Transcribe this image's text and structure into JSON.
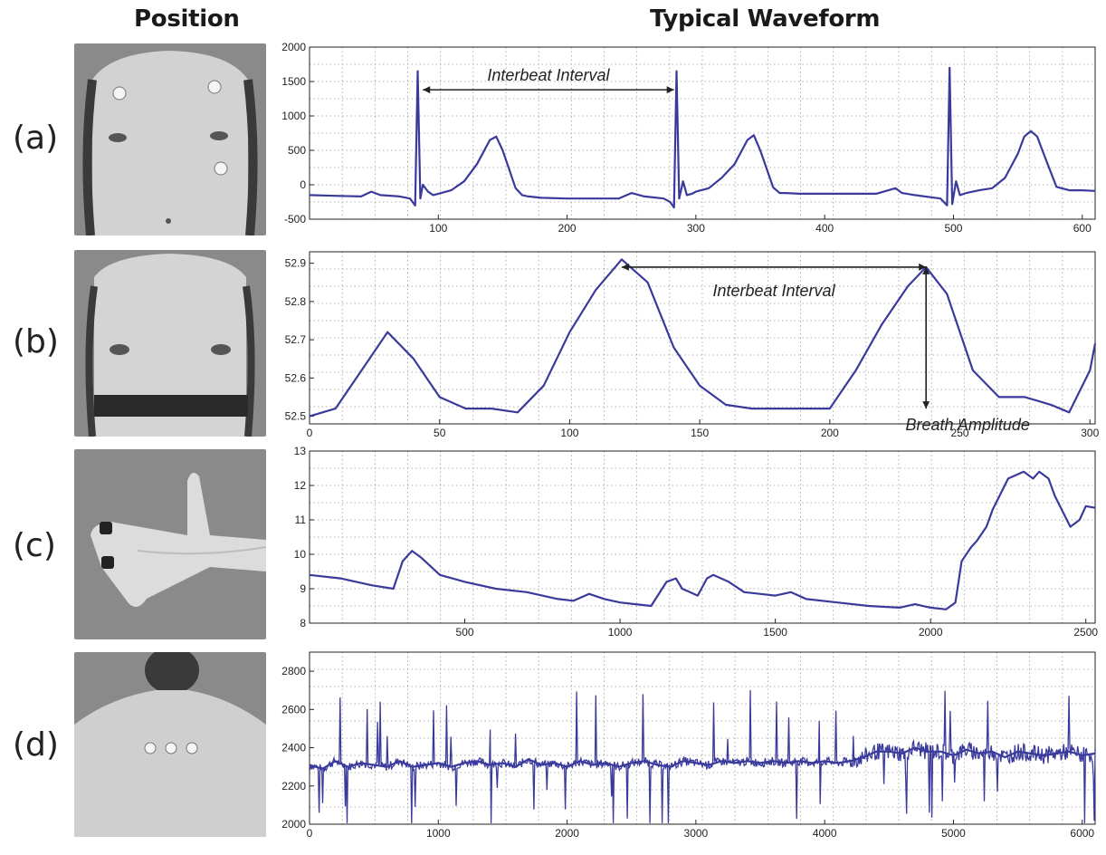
{
  "headers": {
    "position": "Position",
    "waveform": "Typical Waveform"
  },
  "rows": [
    {
      "label": "(a)",
      "photo_icon": "chest-electrodes-photo"
    },
    {
      "label": "(b)",
      "photo_icon": "chest-respiration-belt-photo"
    },
    {
      "label": "(c)",
      "photo_icon": "hand-finger-electrodes-photo"
    },
    {
      "label": "(d)",
      "photo_icon": "upper-back-electrodes-photo"
    }
  ],
  "colors": {
    "line": "#3a3a9c",
    "grid": "#9a9a9a",
    "photo_bg": "#8a8a8a",
    "skin": "#cfcfcf"
  },
  "chart_data": [
    {
      "type": "line",
      "xlim": [
        0,
        610
      ],
      "ylim": [
        -500,
        2000
      ],
      "xticks": [
        100,
        200,
        300,
        400,
        500,
        600
      ],
      "yticks": [
        -500,
        0,
        500,
        1000,
        1500,
        2000
      ],
      "grid": true,
      "annotations": [
        {
          "text": "Interbeat Interval",
          "from": [
            88,
            1380
          ],
          "to": [
            283,
            1380
          ]
        }
      ],
      "series": [
        {
          "x": [
            0,
            20,
            40,
            48,
            55,
            70,
            78,
            82,
            84,
            86,
            88,
            92,
            96,
            100,
            110,
            120,
            130,
            140,
            145,
            150,
            160,
            165,
            170,
            180,
            200,
            220,
            240,
            250,
            260,
            275,
            280,
            283,
            285,
            287,
            290,
            293,
            297,
            300,
            310,
            320,
            330,
            340,
            345,
            350,
            360,
            365,
            370,
            380,
            400,
            420,
            440,
            455,
            460,
            470,
            490,
            495,
            497,
            499,
            502,
            505,
            510,
            515,
            520,
            530,
            540,
            550,
            555,
            560,
            565,
            570,
            580,
            590,
            600,
            610
          ],
          "y": [
            -150,
            -160,
            -170,
            -100,
            -150,
            -170,
            -200,
            -300,
            1650,
            -200,
            0,
            -100,
            -150,
            -130,
            -80,
            50,
            300,
            650,
            700,
            500,
            -50,
            -150,
            -170,
            -190,
            -200,
            -200,
            -200,
            -120,
            -170,
            -200,
            -250,
            -330,
            1650,
            -200,
            50,
            -150,
            -130,
            -100,
            -50,
            100,
            300,
            650,
            720,
            500,
            -40,
            -120,
            -120,
            -130,
            -130,
            -130,
            -130,
            -50,
            -120,
            -150,
            -200,
            -300,
            1700,
            -280,
            50,
            -150,
            -120,
            -100,
            -80,
            -50,
            100,
            450,
            700,
            780,
            700,
            450,
            -30,
            -80,
            -80,
            -90
          ]
        }
      ]
    },
    {
      "type": "line",
      "xlim": [
        0,
        302
      ],
      "ylim": [
        52.48,
        52.93
      ],
      "xticks": [
        0,
        50,
        100,
        150,
        200,
        250,
        300
      ],
      "yticks": [
        52.5,
        52.6,
        52.7,
        52.8,
        52.9
      ],
      "grid": true,
      "annotations": [
        {
          "text": "Interbeat Interval",
          "from": [
            120,
            52.89
          ],
          "to": [
            237,
            52.89
          ]
        },
        {
          "text": "Breath Amplitude",
          "from": [
            237,
            52.89
          ],
          "to": [
            237,
            52.52
          ]
        }
      ],
      "series": [
        {
          "x": [
            0,
            10,
            20,
            30,
            40,
            50,
            60,
            70,
            80,
            90,
            100,
            110,
            120,
            130,
            140,
            150,
            160,
            170,
            180,
            190,
            200,
            210,
            220,
            230,
            237,
            245,
            255,
            265,
            275,
            285,
            292,
            300,
            302
          ],
          "y": [
            52.5,
            52.52,
            52.62,
            52.72,
            52.65,
            52.55,
            52.52,
            52.52,
            52.51,
            52.58,
            52.72,
            52.83,
            52.91,
            52.85,
            52.68,
            52.58,
            52.53,
            52.52,
            52.52,
            52.52,
            52.52,
            52.62,
            52.74,
            52.84,
            52.89,
            52.82,
            52.62,
            52.55,
            52.55,
            52.53,
            52.51,
            52.62,
            52.69
          ]
        }
      ]
    },
    {
      "type": "line",
      "xlim": [
        0,
        2530
      ],
      "ylim": [
        8,
        13
      ],
      "xticks": [
        500,
        1000,
        1500,
        2000,
        2500
      ],
      "yticks": [
        8,
        9,
        10,
        11,
        12,
        13
      ],
      "grid": true,
      "series": [
        {
          "x": [
            0,
            100,
            200,
            270,
            300,
            330,
            360,
            420,
            500,
            600,
            700,
            800,
            850,
            900,
            950,
            1000,
            1050,
            1100,
            1150,
            1180,
            1200,
            1250,
            1280,
            1300,
            1350,
            1400,
            1450,
            1500,
            1550,
            1600,
            1700,
            1800,
            1900,
            1950,
            2000,
            2050,
            2080,
            2100,
            2130,
            2150,
            2180,
            2200,
            2250,
            2300,
            2330,
            2350,
            2380,
            2400,
            2450,
            2480,
            2500,
            2530
          ],
          "y": [
            9.4,
            9.3,
            9.1,
            9.0,
            9.8,
            10.1,
            9.9,
            9.4,
            9.2,
            9.0,
            8.9,
            8.7,
            8.65,
            8.85,
            8.7,
            8.6,
            8.55,
            8.5,
            9.2,
            9.3,
            9.0,
            8.8,
            9.3,
            9.4,
            9.2,
            8.9,
            8.85,
            8.8,
            8.9,
            8.7,
            8.6,
            8.5,
            8.45,
            8.55,
            8.45,
            8.4,
            8.6,
            9.8,
            10.2,
            10.4,
            10.8,
            11.3,
            12.2,
            12.4,
            12.2,
            12.4,
            12.2,
            11.7,
            10.8,
            11.0,
            11.4,
            11.35
          ]
        }
      ]
    },
    {
      "type": "line",
      "xlim": [
        0,
        6100
      ],
      "ylim": [
        2000,
        2900
      ],
      "xticks": [
        0,
        1000,
        2000,
        3000,
        4000,
        5000,
        6000
      ],
      "yticks": [
        2000,
        2200,
        2400,
        2600,
        2800
      ],
      "grid": true,
      "series": [
        {
          "x": [
            0,
            100,
            200,
            300,
            400,
            500,
            600,
            700,
            800,
            900,
            1000,
            1100,
            1200,
            1300,
            1400,
            1500,
            1600,
            1700,
            1800,
            1900,
            2000,
            2100,
            2200,
            2300,
            2400,
            2500,
            2600,
            2700,
            2800,
            2900,
            3000,
            3100,
            3200,
            3300,
            3400,
            3500,
            3600,
            3700,
            3800,
            3900,
            4000,
            4100,
            4200,
            4300,
            4400,
            4500,
            4600,
            4700,
            4800,
            4900,
            5000,
            5100,
            5200,
            5300,
            5400,
            5500,
            5600,
            5700,
            5800,
            5900,
            6000,
            6100
          ],
          "y": [
            2310,
            2290,
            2330,
            2300,
            2320,
            2310,
            2300,
            2330,
            2300,
            2310,
            2320,
            2300,
            2320,
            2330,
            2310,
            2320,
            2300,
            2340,
            2310,
            2320,
            2300,
            2330,
            2310,
            2320,
            2300,
            2320,
            2330,
            2310,
            2300,
            2330,
            2320,
            2310,
            2330,
            2320,
            2330,
            2320,
            2330,
            2320,
            2330,
            2320,
            2330,
            2320,
            2330,
            2350,
            2380,
            2380,
            2370,
            2400,
            2380,
            2380,
            2360,
            2390,
            2370,
            2380,
            2350,
            2380,
            2370,
            2360,
            2370,
            2380,
            2360,
            2370
          ]
        }
      ]
    }
  ]
}
